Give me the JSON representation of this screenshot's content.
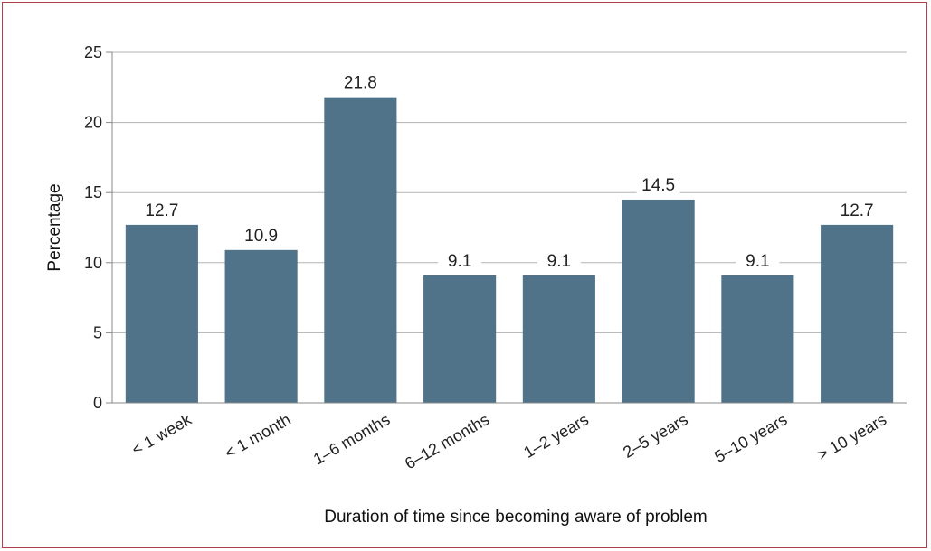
{
  "chart_data": {
    "type": "bar",
    "title": "",
    "xlabel": "Duration of time since becoming aware of problem",
    "ylabel": "Percentage",
    "categories": [
      "< 1 week",
      "< 1 month",
      "1–6 months",
      "6–12 months",
      "1–2 years",
      "2–5 years",
      "5–10 years",
      "> 10 years"
    ],
    "values": [
      12.7,
      10.9,
      21.8,
      9.1,
      9.1,
      14.5,
      9.1,
      12.7
    ],
    "data_labels": [
      "12.7",
      "10.9",
      "21.8",
      "9.1",
      "9.1",
      "14.5",
      "9.1",
      "12.7"
    ],
    "ylim": [
      0,
      25
    ],
    "yticks": [
      0,
      5,
      10,
      15,
      20,
      25
    ],
    "grid": true,
    "legend": "none",
    "colors": {
      "bar": "#517389",
      "grid": "#b3b3b3",
      "axis": "#888888",
      "frame": "#b0414b"
    }
  }
}
